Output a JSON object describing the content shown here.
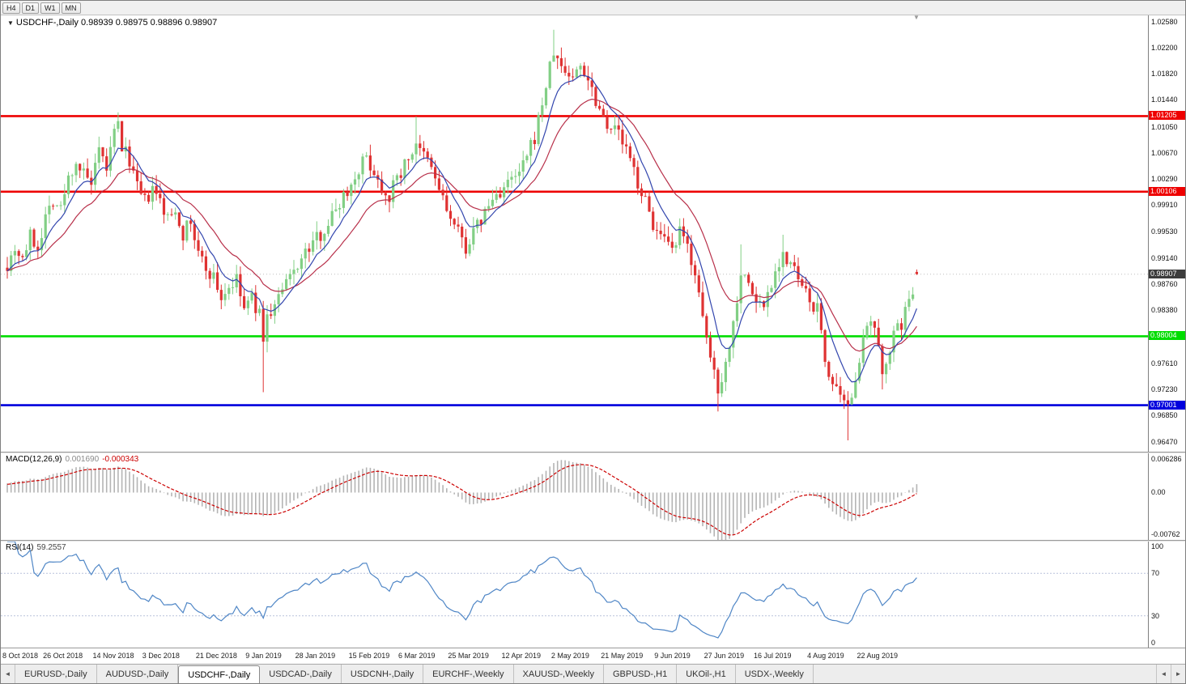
{
  "toolbar": {
    "timeframes": [
      "H4",
      "D1",
      "W1",
      "MN"
    ]
  },
  "icons": {
    "dropdown": "▼",
    "scroll_left": "◄",
    "scroll_right": "►",
    "shift_marker": "▼"
  },
  "tabs": {
    "active_index": 2,
    "items": [
      "EURUSD-,Daily",
      "AUDUSD-,Daily",
      "USDCHF-,Daily",
      "USDCAD-,Daily",
      "USDCNH-,Daily",
      "EURCHF-,Weekly",
      "XAUUSD-,Weekly",
      "GBPUSD-,H1",
      "UKOil-,H1",
      "USDX-,Weekly"
    ]
  },
  "colors": {
    "bull": "#82cf85",
    "bear": "#df3232",
    "ma_fast": "#3346ae",
    "ma_slow": "#b8304a",
    "macd_hist": "#b4b4b4",
    "macd_signal": "#cc0000",
    "rsi_line": "#4f86c6",
    "rsi_level": "#b9c2dc",
    "current_badge": "#3c3c3c",
    "current_line": "#bdbdbd"
  },
  "chart_data": {
    "type": "candlestick",
    "symbol": "USDCHF",
    "timeframe": "Daily",
    "title": "USDCHF-,Daily",
    "ohlc_text": "0.98939 0.98975 0.98896 0.98907",
    "last_candle": {
      "o": 0.98939,
      "h": 0.98975,
      "l": 0.98896,
      "c": 0.98907
    },
    "price_axis": {
      "max": 1.0267,
      "min": 0.96325,
      "labels": [
        "1.02580",
        "1.02200",
        "1.01820",
        "1.01440",
        "1.01050",
        "1.00670",
        "1.00290",
        "0.99910",
        "0.99530",
        "0.99140",
        "0.98760",
        "0.98380",
        "0.97610",
        "0.97230",
        "0.96850",
        "0.96470"
      ]
    },
    "levels": [
      {
        "value": 1.01205,
        "label": "1.01205",
        "color": "#ee0000"
      },
      {
        "value": 1.00106,
        "label": "1.00106",
        "color": "#ee0000"
      },
      {
        "value": 0.98004,
        "label": "0.98004",
        "color": "#00dd00"
      },
      {
        "value": 0.97001,
        "label": "0.97001",
        "color": "#0000dd"
      }
    ],
    "current_price": {
      "value": 0.98907,
      "label": "0.98907"
    },
    "candles": {
      "count": 239,
      "anchors": [
        [
          0,
          0.9905
        ],
        [
          2,
          0.993
        ],
        [
          4,
          0.9915
        ],
        [
          6,
          0.9945
        ],
        [
          8,
          0.993
        ],
        [
          10,
          0.9975
        ],
        [
          12,
          1.0
        ],
        [
          14,
          0.9985
        ],
        [
          16,
          1.003
        ],
        [
          18,
          1.0055
        ],
        [
          20,
          1.0035
        ],
        [
          22,
          1.002
        ],
        [
          24,
          1.0065
        ],
        [
          26,
          1.0045
        ],
        [
          28,
          1.0095
        ],
        [
          29,
          1.0108
        ],
        [
          30,
          1.0075
        ],
        [
          32,
          1.0058
        ],
        [
          34,
          1.0015
        ],
        [
          36,
          0.9995
        ],
        [
          38,
          1.0012
        ],
        [
          40,
          0.9996
        ],
        [
          42,
          0.997
        ],
        [
          44,
          0.9986
        ],
        [
          46,
          0.995
        ],
        [
          48,
          0.9966
        ],
        [
          50,
          0.992
        ],
        [
          52,
          0.99
        ],
        [
          54,
          0.9886
        ],
        [
          56,
          0.9856
        ],
        [
          58,
          0.9872
        ],
        [
          60,
          0.988
        ],
        [
          62,
          0.984
        ],
        [
          64,
          0.9856
        ],
        [
          66,
          0.983
        ],
        [
          67,
          0.9802
        ],
        [
          68,
          0.9826
        ],
        [
          70,
          0.9846
        ],
        [
          72,
          0.9866
        ],
        [
          74,
          0.9886
        ],
        [
          76,
          0.9906
        ],
        [
          78,
          0.992
        ],
        [
          80,
          0.9936
        ],
        [
          82,
          0.995
        ],
        [
          84,
          0.9966
        ],
        [
          86,
          0.9986
        ],
        [
          88,
          1.0006
        ],
        [
          90,
          1.002
        ],
        [
          92,
          1.0046
        ],
        [
          94,
          1.006
        ],
        [
          96,
          1.004
        ],
        [
          98,
          1.0016
        ],
        [
          100,
          1.0006
        ],
        [
          102,
          1.003
        ],
        [
          104,
          1.005
        ],
        [
          106,
          1.007
        ],
        [
          107,
          1.0084
        ],
        [
          108,
          1.0066
        ],
        [
          110,
          1.0056
        ],
        [
          112,
          1.003
        ],
        [
          114,
          1.0
        ],
        [
          116,
          0.997
        ],
        [
          118,
          0.995
        ],
        [
          120,
          0.993
        ],
        [
          122,
          0.995
        ],
        [
          124,
          0.997
        ],
        [
          126,
          0.999
        ],
        [
          128,
          1.0006
        ],
        [
          130,
          1.0016
        ],
        [
          132,
          1.0026
        ],
        [
          134,
          1.0036
        ],
        [
          136,
          1.006
        ],
        [
          138,
          1.009
        ],
        [
          140,
          1.014
        ],
        [
          142,
          1.019
        ],
        [
          143,
          1.0214
        ],
        [
          144,
          1.02
        ],
        [
          146,
          1.0186
        ],
        [
          148,
          1.0176
        ],
        [
          150,
          1.0196
        ],
        [
          152,
          1.0176
        ],
        [
          154,
          1.0146
        ],
        [
          156,
          1.012
        ],
        [
          158,
          1.0106
        ],
        [
          160,
          1.0096
        ],
        [
          162,
          1.007
        ],
        [
          164,
          1.004
        ],
        [
          166,
          1.001
        ],
        [
          168,
          0.998
        ],
        [
          170,
          0.995
        ],
        [
          172,
          0.9936
        ],
        [
          174,
          0.992
        ],
        [
          176,
          0.995
        ],
        [
          178,
          0.993
        ],
        [
          180,
          0.9896
        ],
        [
          182,
          0.982
        ],
        [
          184,
          0.977
        ],
        [
          186,
          0.9726
        ],
        [
          188,
          0.976
        ],
        [
          190,
          0.982
        ],
        [
          192,
          0.9896
        ],
        [
          194,
          0.9876
        ],
        [
          196,
          0.985
        ],
        [
          198,
          0.9846
        ],
        [
          200,
          0.988
        ],
        [
          202,
          0.991
        ],
        [
          203,
          0.9924
        ],
        [
          204,
          0.9906
        ],
        [
          206,
          0.9896
        ],
        [
          208,
          0.987
        ],
        [
          210,
          0.985
        ],
        [
          212,
          0.984
        ],
        [
          214,
          0.9766
        ],
        [
          216,
          0.973
        ],
        [
          218,
          0.9706
        ],
        [
          220,
          0.9692
        ],
        [
          222,
          0.9746
        ],
        [
          224,
          0.979
        ],
        [
          226,
          0.982
        ],
        [
          227,
          0.9806
        ],
        [
          228,
          0.9776
        ],
        [
          229,
          0.9746
        ],
        [
          230,
          0.977
        ],
        [
          232,
          0.98
        ],
        [
          234,
          0.982
        ],
        [
          236,
          0.985
        ],
        [
          238,
          0.9891
        ]
      ],
      "wick_lows": {
        "67": 0.9719,
        "186": 0.9691,
        "220": 0.9649,
        "229": 0.9723
      },
      "wick_highs": {
        "29": 1.0126,
        "107": 1.012,
        "143": 1.0246,
        "192": 0.9934,
        "203": 0.9948
      }
    },
    "date_ticks": [
      {
        "i": 0,
        "label": "8 Oct 2018"
      },
      {
        "i": 14,
        "label": "26 Oct 2018"
      },
      {
        "i": 27,
        "label": "14 Nov 2018"
      },
      {
        "i": 40,
        "label": "3 Dec 2018"
      },
      {
        "i": 54,
        "label": "21 Dec 2018"
      },
      {
        "i": 67,
        "label": "9 Jan 2019"
      },
      {
        "i": 80,
        "label": "28 Jan 2019"
      },
      {
        "i": 94,
        "label": "15 Feb 2019"
      },
      {
        "i": 107,
        "label": "6 Mar 2019"
      },
      {
        "i": 120,
        "label": "25 Mar 2019"
      },
      {
        "i": 134,
        "label": "12 Apr 2019"
      },
      {
        "i": 147,
        "label": "2 May 2019"
      },
      {
        "i": 160,
        "label": "21 May 2019"
      },
      {
        "i": 174,
        "label": "9 Jun 2019"
      },
      {
        "i": 187,
        "label": "27 Jun 2019"
      },
      {
        "i": 200,
        "label": "16 Jul 2019"
      },
      {
        "i": 214,
        "label": "4 Aug 2019"
      },
      {
        "i": 227,
        "label": "22 Aug 2019"
      }
    ],
    "macd": {
      "name": "MACD(12,26,9)",
      "value": "0.001690",
      "signal_value": "-0.000343",
      "axis_top": "0.006286",
      "axis_zero": "0.00",
      "axis_bottom": "-0.00762",
      "range": {
        "min": -0.0076,
        "max": 0.0063
      }
    },
    "rsi": {
      "name": "RSI(14)",
      "value": "59.2557",
      "axis_top": "100",
      "axis_70": "70",
      "axis_30": "30",
      "axis_bottom": "0",
      "levels": [
        70,
        30
      ]
    }
  }
}
